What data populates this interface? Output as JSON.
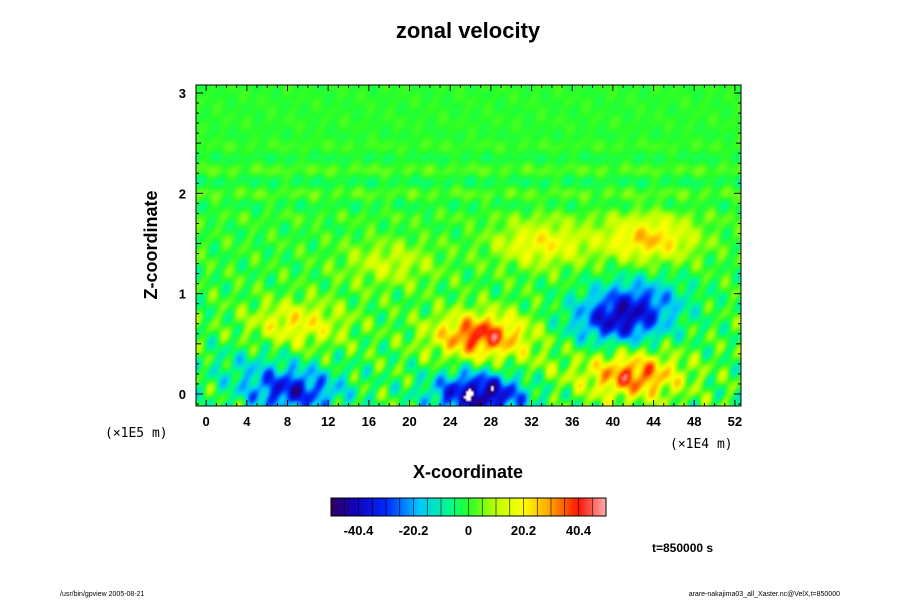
{
  "chart_data": {
    "type": "heatmap",
    "title": "zonal velocity",
    "xlabel": "X-coordinate",
    "ylabel": "Z-coordinate",
    "x_scale_note": "(×1E5 m)",
    "y_scale_note": "(×1E4 m)",
    "xlim": [
      -1,
      52.6
    ],
    "ylim": [
      -0.12,
      3.08
    ],
    "x_ticks": [
      0,
      4,
      8,
      12,
      16,
      20,
      24,
      28,
      32,
      36,
      40,
      44,
      48,
      52
    ],
    "y_ticks": [
      0,
      1,
      2,
      3
    ],
    "colorbar": {
      "min": -50.5,
      "max": 50.5,
      "tick_values": [
        -40.4,
        -20.2,
        0,
        20.2,
        40.4
      ],
      "tick_labels": [
        "-40.4",
        "-20.2",
        "0",
        "20.2",
        "40.4"
      ]
    },
    "features": [
      {
        "x": 8.5,
        "z": 0.03,
        "value": -35
      },
      {
        "x": 27,
        "z": 0.0,
        "value": -48
      },
      {
        "x": 40.5,
        "z": 0.72,
        "value": -34
      },
      {
        "x": 42.5,
        "z": 0.95,
        "value": -22
      },
      {
        "x": 27,
        "z": 0.58,
        "value": 40
      },
      {
        "x": 42,
        "z": 0.18,
        "value": 36
      },
      {
        "x": 9,
        "z": 0.7,
        "value": 20
      },
      {
        "x": 43.5,
        "z": 1.55,
        "value": 26
      },
      {
        "x": 33,
        "z": 1.5,
        "value": 20
      },
      {
        "x": 18,
        "z": 1.3,
        "value": 12
      },
      {
        "x": 4,
        "z": 0.28,
        "value": -8
      },
      {
        "x": 32,
        "z": 0.2,
        "value": 6
      }
    ]
  },
  "annotations": {
    "time": "t=850000 s",
    "footer_left": "/usr/bin/gpview 2005-08-21",
    "footer_right": "arare-nakajima03_all_Xaster.nc@VelX,t=850000"
  }
}
